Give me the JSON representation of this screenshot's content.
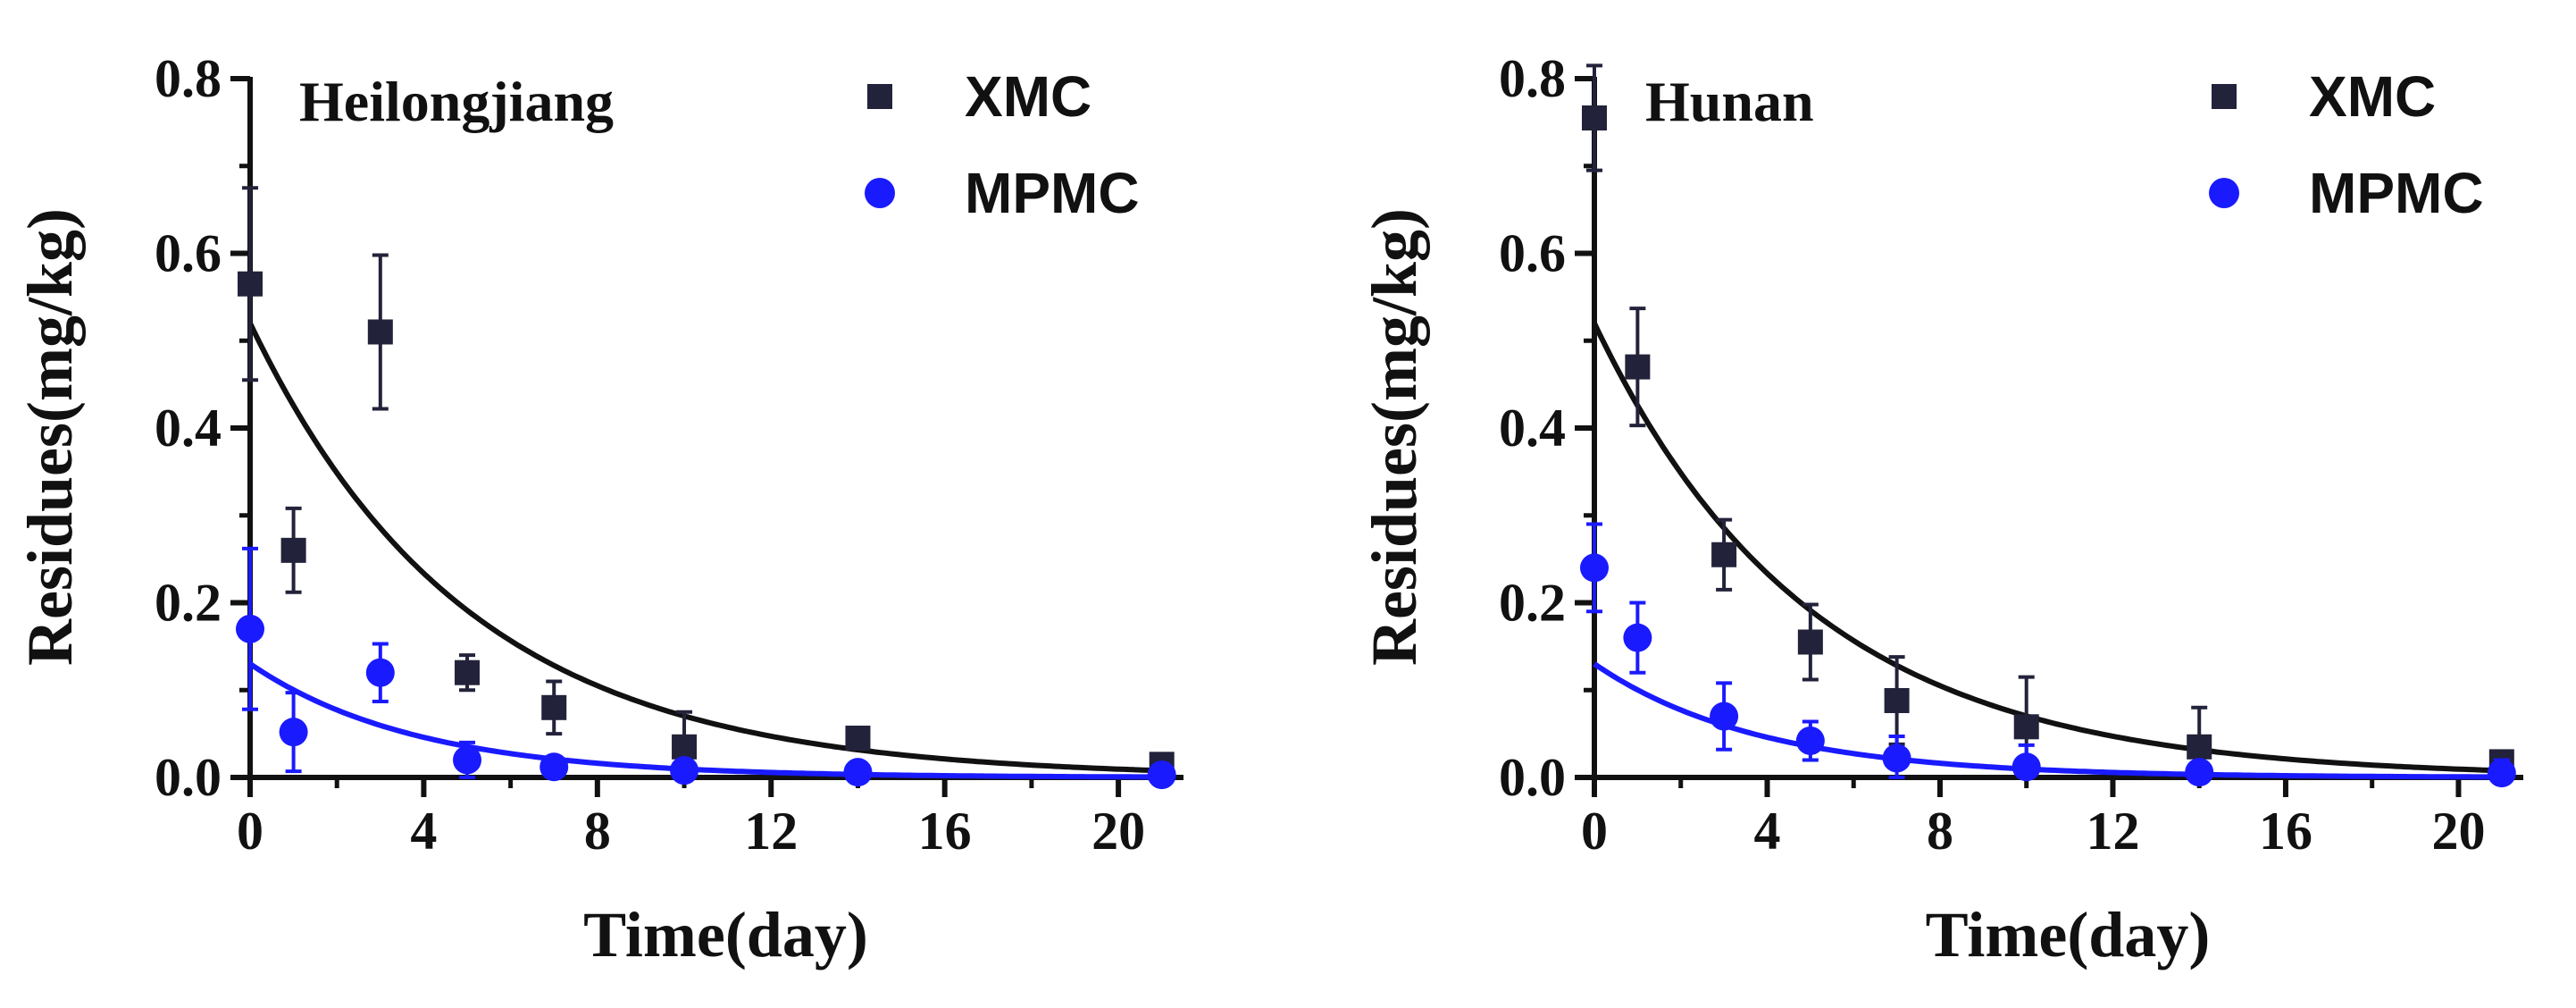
{
  "chart_data": [
    {
      "type": "scatter",
      "title": "Heilongjiang",
      "xlabel": "Time(day)",
      "ylabel": "Residues(mg/kg)",
      "xlim": [
        0,
        21.5
      ],
      "ylim": [
        0,
        0.8
      ],
      "xticks": [
        "0",
        "4",
        "8",
        "12",
        "16",
        "20"
      ],
      "yticks": [
        "0.0",
        "0.2",
        "0.4",
        "0.6",
        "0.8"
      ],
      "legend_position": "top-right",
      "series": [
        {
          "name": "XMC",
          "marker": "square",
          "color": "#22223a",
          "x": [
            0,
            1,
            3,
            5,
            7,
            10,
            14,
            21
          ],
          "y": [
            0.565,
            0.26,
            0.51,
            0.12,
            0.08,
            0.035,
            0.045,
            0.015
          ],
          "err": [
            0.11,
            0.048,
            0.088,
            0.02,
            0.03,
            0.04,
            0.01,
            0.005
          ],
          "fit": {
            "a": 0.52,
            "k": 0.2
          }
        },
        {
          "name": "MPMC",
          "marker": "circle",
          "color": "#1a1aff",
          "x": [
            0,
            1,
            3,
            5,
            7,
            10,
            14,
            21
          ],
          "y": [
            0.17,
            0.052,
            0.12,
            0.02,
            0.012,
            0.008,
            0.006,
            0.003
          ],
          "err": [
            0.092,
            0.045,
            0.033,
            0.02,
            0.008,
            0.008,
            0.005,
            0.005
          ],
          "fit": {
            "a": 0.13,
            "k": 0.26
          }
        }
      ]
    },
    {
      "type": "scatter",
      "title": "Hunan",
      "xlabel": "Time(day)",
      "ylabel": "Residues(mg/kg)",
      "xlim": [
        0,
        21.5
      ],
      "ylim": [
        0,
        0.8
      ],
      "xticks": [
        "0",
        "4",
        "8",
        "12",
        "16",
        "20"
      ],
      "yticks": [
        "0.0",
        "0.2",
        "0.4",
        "0.6",
        "0.8"
      ],
      "legend_position": "top-right",
      "series": [
        {
          "name": "XMC",
          "marker": "square",
          "color": "#22223a",
          "x": [
            0,
            1,
            3,
            5,
            7,
            10,
            14,
            21
          ],
          "y": [
            0.755,
            0.47,
            0.255,
            0.155,
            0.088,
            0.058,
            0.035,
            0.018
          ],
          "err": [
            0.06,
            0.067,
            0.04,
            0.043,
            0.05,
            0.057,
            0.045,
            0.008
          ],
          "fit": {
            "a": 0.52,
            "k": 0.2
          }
        },
        {
          "name": "MPMC",
          "marker": "circle",
          "color": "#1a1aff",
          "x": [
            0,
            1,
            3,
            5,
            7,
            10,
            14,
            21
          ],
          "y": [
            0.24,
            0.16,
            0.07,
            0.042,
            0.022,
            0.012,
            0.006,
            0.005
          ],
          "err": [
            0.05,
            0.04,
            0.038,
            0.022,
            0.025,
            0.025,
            0.01,
            0.015
          ],
          "fit": {
            "a": 0.13,
            "k": 0.26
          }
        }
      ]
    }
  ]
}
